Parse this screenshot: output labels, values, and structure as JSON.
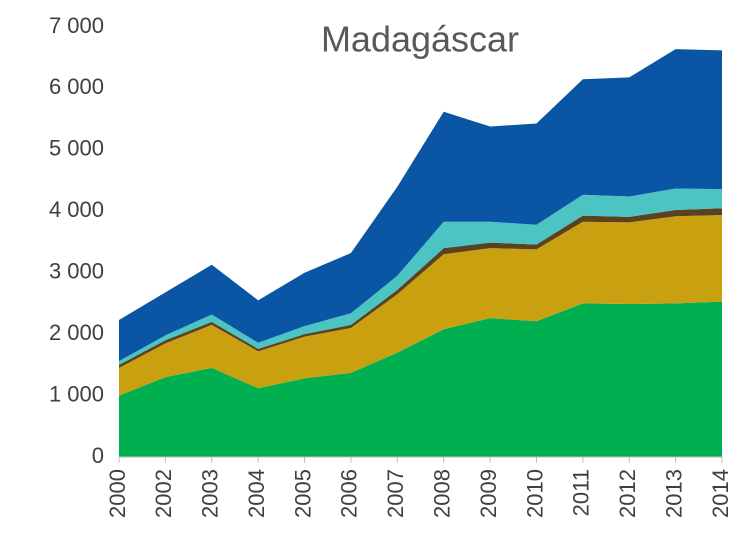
{
  "chart_data": {
    "type": "stacked_area",
    "title": "Madagáscar",
    "categories": [
      "2000",
      "2002",
      "2003",
      "2004",
      "2005",
      "2006",
      "2007",
      "2008",
      "2009",
      "2010",
      "2011",
      "2012",
      "2013",
      "2014"
    ],
    "series": [
      {
        "color": "#00b050",
        "values": [
          1000,
          1300,
          1450,
          1120,
          1280,
          1370,
          1700,
          2080,
          2260,
          2210,
          2500,
          2490,
          2500,
          2530
        ]
      },
      {
        "color": "#c9a00f",
        "values": [
          450,
          550,
          700,
          600,
          680,
          730,
          950,
          1220,
          1140,
          1170,
          1330,
          1330,
          1420,
          1410
        ]
      },
      {
        "color": "#5a4220",
        "values": [
          50,
          50,
          50,
          40,
          40,
          50,
          70,
          100,
          90,
          80,
          100,
          90,
          100,
          110
        ]
      },
      {
        "color": "#4cc4c4",
        "values": [
          60,
          80,
          120,
          100,
          130,
          190,
          230,
          430,
          340,
          320,
          340,
          330,
          350,
          310
        ]
      },
      {
        "color": "#0a56a5",
        "values": [
          670,
          700,
          810,
          690,
          870,
          980,
          1450,
          1790,
          1550,
          1650,
          1880,
          1940,
          2270,
          2260
        ]
      }
    ],
    "ylim": [
      0,
      7000
    ],
    "yticks": [
      0,
      {
        "value": 1000,
        "label": "1 000"
      },
      {
        "value": 2000,
        "label": "2 000"
      },
      {
        "value": 3000,
        "label": "3 000"
      },
      {
        "value": 4000,
        "label": "4 000"
      },
      {
        "value": 5000,
        "label": "5 000"
      },
      {
        "value": 6000,
        "label": "6 000"
      },
      {
        "value": 7000,
        "label": "7 000"
      }
    ],
    "grid": false
  }
}
